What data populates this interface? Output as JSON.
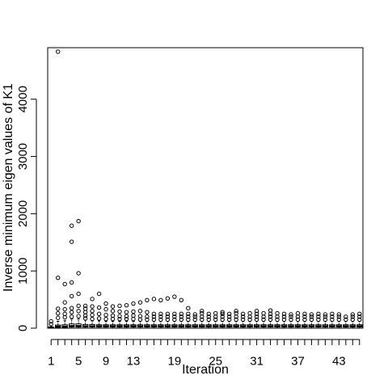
{
  "chart_data": {
    "type": "boxplot",
    "title": "",
    "xlabel": "Iteration",
    "ylabel": "Inverse minimum eigen values of K1",
    "xlim": [
      0.5,
      46.5
    ],
    "ylim": [
      0,
      4900
    ],
    "x_ticks": [
      1,
      5,
      9,
      13,
      19,
      25,
      31,
      37,
      43
    ],
    "y_ticks": [
      0,
      1000,
      2000,
      3000,
      4000
    ],
    "grid": false,
    "series": [
      {
        "x": 1,
        "q1": 5,
        "median": 10,
        "q3": 20,
        "wlo": 0,
        "whi": 40,
        "outliers": [
          70,
          120
        ]
      },
      {
        "x": 2,
        "q1": 15,
        "median": 30,
        "q3": 55,
        "wlo": 0,
        "whi": 120,
        "outliers": [
          180,
          260,
          340,
          880,
          4830
        ]
      },
      {
        "x": 3,
        "q1": 15,
        "median": 30,
        "q3": 60,
        "wlo": 0,
        "whi": 130,
        "outliers": [
          190,
          250,
          330,
          450,
          770
        ]
      },
      {
        "x": 4,
        "q1": 20,
        "median": 40,
        "q3": 75,
        "wlo": 0,
        "whi": 160,
        "outliers": [
          200,
          280,
          350,
          560,
          800,
          1510,
          1790
        ]
      },
      {
        "x": 5,
        "q1": 20,
        "median": 40,
        "q3": 75,
        "wlo": 0,
        "whi": 160,
        "outliers": [
          210,
          300,
          390,
          600,
          960,
          1870
        ]
      },
      {
        "x": 6,
        "q1": 20,
        "median": 35,
        "q3": 65,
        "wlo": 0,
        "whi": 140,
        "outliers": [
          170,
          220,
          280,
          340,
          390
        ]
      },
      {
        "x": 7,
        "q1": 20,
        "median": 35,
        "q3": 65,
        "wlo": 0,
        "whi": 130,
        "outliers": [
          160,
          230,
          300,
          380,
          510
        ]
      },
      {
        "x": 8,
        "q1": 20,
        "median": 35,
        "q3": 60,
        "wlo": 0,
        "whi": 130,
        "outliers": [
          170,
          250,
          360,
          600
        ]
      },
      {
        "x": 9,
        "q1": 20,
        "median": 35,
        "q3": 60,
        "wlo": 0,
        "whi": 120,
        "outliers": [
          160,
          230,
          330,
          430
        ]
      },
      {
        "x": 10,
        "q1": 20,
        "median": 35,
        "q3": 60,
        "wlo": 0,
        "whi": 120,
        "outliers": [
          160,
          220,
          300,
          380
        ]
      },
      {
        "x": 11,
        "q1": 20,
        "median": 35,
        "q3": 60,
        "wlo": 0,
        "whi": 120,
        "outliers": [
          160,
          210,
          290,
          390
        ]
      },
      {
        "x": 12,
        "q1": 20,
        "median": 35,
        "q3": 60,
        "wlo": 0,
        "whi": 120,
        "outliers": [
          160,
          210,
          280,
          400
        ]
      },
      {
        "x": 13,
        "q1": 20,
        "median": 35,
        "q3": 60,
        "wlo": 0,
        "whi": 120,
        "outliers": [
          160,
          220,
          290,
          430
        ]
      },
      {
        "x": 14,
        "q1": 20,
        "median": 35,
        "q3": 60,
        "wlo": 0,
        "whi": 120,
        "outliers": [
          150,
          210,
          300,
          450
        ]
      },
      {
        "x": 15,
        "q1": 20,
        "median": 35,
        "q3": 60,
        "wlo": 0,
        "whi": 120,
        "outliers": [
          150,
          200,
          280,
          490
        ]
      },
      {
        "x": 16,
        "q1": 20,
        "median": 35,
        "q3": 60,
        "wlo": 0,
        "whi": 120,
        "outliers": [
          150,
          200,
          250,
          510
        ]
      },
      {
        "x": 17,
        "q1": 20,
        "median": 35,
        "q3": 60,
        "wlo": 0,
        "whi": 120,
        "outliers": [
          150,
          200,
          250,
          490
        ]
      },
      {
        "x": 18,
        "q1": 20,
        "median": 35,
        "q3": 60,
        "wlo": 0,
        "whi": 120,
        "outliers": [
          150,
          200,
          250,
          520
        ]
      },
      {
        "x": 19,
        "q1": 20,
        "median": 35,
        "q3": 60,
        "wlo": 0,
        "whi": 120,
        "outliers": [
          150,
          200,
          250,
          550
        ]
      },
      {
        "x": 20,
        "q1": 20,
        "median": 35,
        "q3": 60,
        "wlo": 0,
        "whi": 120,
        "outliers": [
          150,
          200,
          250,
          490
        ]
      },
      {
        "x": 21,
        "q1": 20,
        "median": 35,
        "q3": 60,
        "wlo": 0,
        "whi": 120,
        "outliers": [
          150,
          200,
          250,
          350
        ]
      },
      {
        "x": 22,
        "q1": 20,
        "median": 35,
        "q3": 60,
        "wlo": 0,
        "whi": 120,
        "outliers": [
          150,
          200,
          240
        ]
      },
      {
        "x": 23,
        "q1": 20,
        "median": 35,
        "q3": 60,
        "wlo": 0,
        "whi": 120,
        "outliers": [
          150,
          200,
          260,
          300
        ]
      },
      {
        "x": 24,
        "q1": 20,
        "median": 35,
        "q3": 60,
        "wlo": 0,
        "whi": 120,
        "outliers": [
          150,
          200,
          250
        ]
      },
      {
        "x": 25,
        "q1": 20,
        "median": 35,
        "q3": 60,
        "wlo": 0,
        "whi": 120,
        "outliers": [
          150,
          200,
          260
        ]
      },
      {
        "x": 26,
        "q1": 20,
        "median": 35,
        "q3": 60,
        "wlo": 0,
        "whi": 120,
        "outliers": [
          150,
          200,
          250,
          280
        ]
      },
      {
        "x": 27,
        "q1": 20,
        "median": 35,
        "q3": 60,
        "wlo": 0,
        "whi": 120,
        "outliers": [
          150,
          200,
          250
        ]
      },
      {
        "x": 28,
        "q1": 20,
        "median": 35,
        "q3": 60,
        "wlo": 0,
        "whi": 120,
        "outliers": [
          150,
          200,
          260,
          300
        ]
      },
      {
        "x": 29,
        "q1": 20,
        "median": 35,
        "q3": 60,
        "wlo": 0,
        "whi": 120,
        "outliers": [
          150,
          200,
          250
        ]
      },
      {
        "x": 30,
        "q1": 20,
        "median": 35,
        "q3": 60,
        "wlo": 0,
        "whi": 120,
        "outliers": [
          150,
          200,
          260
        ]
      },
      {
        "x": 31,
        "q1": 20,
        "median": 35,
        "q3": 60,
        "wlo": 0,
        "whi": 120,
        "outliers": [
          150,
          200,
          250,
          300
        ]
      },
      {
        "x": 32,
        "q1": 20,
        "median": 35,
        "q3": 60,
        "wlo": 0,
        "whi": 120,
        "outliers": [
          150,
          200,
          260
        ]
      },
      {
        "x": 33,
        "q1": 20,
        "median": 35,
        "q3": 60,
        "wlo": 0,
        "whi": 120,
        "outliers": [
          150,
          200,
          250,
          310
        ]
      },
      {
        "x": 34,
        "q1": 20,
        "median": 35,
        "q3": 60,
        "wlo": 0,
        "whi": 120,
        "outliers": [
          150,
          200,
          260
        ]
      },
      {
        "x": 35,
        "q1": 20,
        "median": 35,
        "q3": 60,
        "wlo": 0,
        "whi": 120,
        "outliers": [
          150,
          200,
          250
        ]
      },
      {
        "x": 36,
        "q1": 20,
        "median": 35,
        "q3": 60,
        "wlo": 0,
        "whi": 120,
        "outliers": [
          150,
          200,
          240
        ]
      },
      {
        "x": 37,
        "q1": 20,
        "median": 35,
        "q3": 60,
        "wlo": 0,
        "whi": 120,
        "outliers": [
          150,
          200,
          260
        ]
      },
      {
        "x": 38,
        "q1": 20,
        "median": 35,
        "q3": 60,
        "wlo": 0,
        "whi": 120,
        "outliers": [
          150,
          200,
          250
        ]
      },
      {
        "x": 39,
        "q1": 20,
        "median": 35,
        "q3": 60,
        "wlo": 0,
        "whi": 120,
        "outliers": [
          150,
          200,
          240
        ]
      },
      {
        "x": 40,
        "q1": 20,
        "median": 35,
        "q3": 60,
        "wlo": 0,
        "whi": 120,
        "outliers": [
          150,
          200,
          250
        ]
      },
      {
        "x": 41,
        "q1": 20,
        "median": 35,
        "q3": 60,
        "wlo": 0,
        "whi": 120,
        "outliers": [
          150,
          200,
          240
        ]
      },
      {
        "x": 42,
        "q1": 20,
        "median": 35,
        "q3": 60,
        "wlo": 0,
        "whi": 120,
        "outliers": [
          150,
          200,
          250
        ]
      },
      {
        "x": 43,
        "q1": 20,
        "median": 35,
        "q3": 60,
        "wlo": 0,
        "whi": 120,
        "outliers": [
          150,
          200,
          240
        ]
      },
      {
        "x": 44,
        "q1": 20,
        "median": 35,
        "q3": 60,
        "wlo": 0,
        "whi": 120,
        "outliers": [
          150,
          200
        ]
      },
      {
        "x": 45,
        "q1": 20,
        "median": 35,
        "q3": 60,
        "wlo": 0,
        "whi": 120,
        "outliers": [
          150,
          200,
          240
        ]
      },
      {
        "x": 46,
        "q1": 20,
        "median": 35,
        "q3": 60,
        "wlo": 0,
        "whi": 120,
        "outliers": [
          150,
          200,
          250
        ]
      }
    ]
  }
}
